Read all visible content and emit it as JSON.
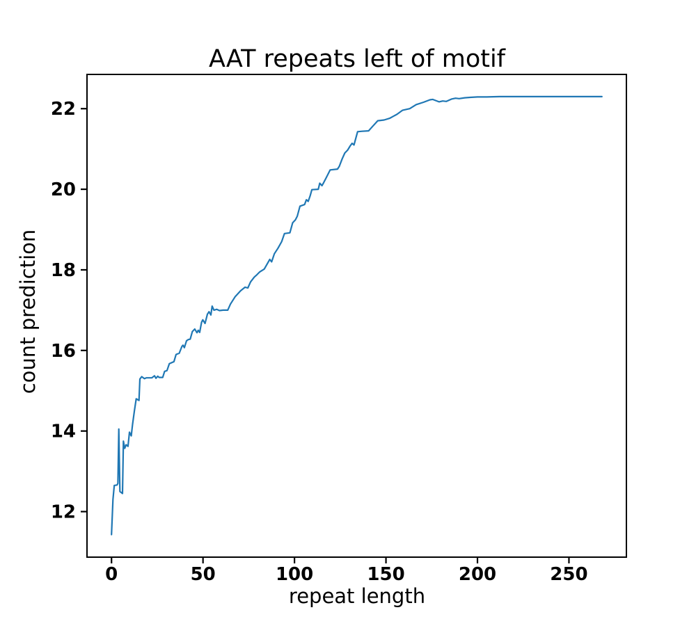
{
  "figure": {
    "background": "#ffffff"
  },
  "chart_data": {
    "type": "line",
    "title": "AAT repeats left of motif",
    "xlabel": "repeat length",
    "ylabel": "count prediction",
    "x_ticks": [
      0,
      50,
      100,
      150,
      200,
      250
    ],
    "y_ticks": [
      12,
      14,
      16,
      18,
      20,
      22
    ],
    "xlim": [
      -13.4,
      281.4
    ],
    "ylim": [
      10.87,
      22.85
    ],
    "grid": false,
    "legend": "none",
    "line_color": "#1f77b4",
    "text_color": "#000000",
    "spine_color": "#000000",
    "series": [
      {
        "name": "count prediction",
        "points": [
          [
            0,
            11.43
          ],
          [
            0.8,
            12.3
          ],
          [
            1.5,
            12.65
          ],
          [
            3,
            12.66
          ],
          [
            3.5,
            12.7
          ],
          [
            4,
            14.05
          ],
          [
            4.6,
            12.5
          ],
          [
            6,
            12.45
          ],
          [
            6.5,
            13.75
          ],
          [
            7.2,
            13.57
          ],
          [
            8,
            13.66
          ],
          [
            9,
            13.62
          ],
          [
            9.8,
            13.97
          ],
          [
            10.8,
            13.88
          ],
          [
            11.5,
            14.17
          ],
          [
            12.5,
            14.5
          ],
          [
            13.5,
            14.8
          ],
          [
            15,
            14.76
          ],
          [
            15.5,
            15.29
          ],
          [
            16.5,
            15.35
          ],
          [
            18,
            15.3
          ],
          [
            19,
            15.32
          ],
          [
            22,
            15.32
          ],
          [
            23.5,
            15.37
          ],
          [
            24.3,
            15.31
          ],
          [
            25.3,
            15.36
          ],
          [
            26,
            15.33
          ],
          [
            28,
            15.33
          ],
          [
            29,
            15.48
          ],
          [
            30.3,
            15.5
          ],
          [
            31.6,
            15.67
          ],
          [
            33,
            15.7
          ],
          [
            34.1,
            15.72
          ],
          [
            35.3,
            15.9
          ],
          [
            37,
            15.93
          ],
          [
            38.5,
            16.1
          ],
          [
            39.1,
            16.13
          ],
          [
            39.8,
            16.07
          ],
          [
            41,
            16.24
          ],
          [
            42,
            16.27
          ],
          [
            43,
            16.28
          ],
          [
            44.2,
            16.47
          ],
          [
            45.5,
            16.53
          ],
          [
            46.7,
            16.44
          ],
          [
            47.4,
            16.5
          ],
          [
            48.2,
            16.45
          ],
          [
            49.2,
            16.7
          ],
          [
            49.9,
            16.76
          ],
          [
            51.1,
            16.67
          ],
          [
            52.4,
            16.9
          ],
          [
            53.3,
            16.96
          ],
          [
            54.3,
            16.88
          ],
          [
            55,
            17.1
          ],
          [
            56,
            17.0
          ],
          [
            57.5,
            17.02
          ],
          [
            59,
            16.99
          ],
          [
            61,
            17.0
          ],
          [
            63.5,
            17.0
          ],
          [
            65,
            17.15
          ],
          [
            67.5,
            17.33
          ],
          [
            70.5,
            17.48
          ],
          [
            73,
            17.57
          ],
          [
            74.5,
            17.55
          ],
          [
            76,
            17.7
          ],
          [
            78,
            17.82
          ],
          [
            79.5,
            17.88
          ],
          [
            81,
            17.95
          ],
          [
            83.5,
            18.02
          ],
          [
            85,
            18.14
          ],
          [
            86.5,
            18.26
          ],
          [
            87.5,
            18.2
          ],
          [
            89,
            18.4
          ],
          [
            91,
            18.54
          ],
          [
            93,
            18.7
          ],
          [
            94.5,
            18.9
          ],
          [
            97.5,
            18.92
          ],
          [
            99,
            19.17
          ],
          [
            100.5,
            19.24
          ],
          [
            101.5,
            19.33
          ],
          [
            103,
            19.58
          ],
          [
            105.5,
            19.62
          ],
          [
            106.5,
            19.74
          ],
          [
            107.5,
            19.7
          ],
          [
            108.5,
            19.83
          ],
          [
            109.5,
            19.99
          ],
          [
            113,
            20.0
          ],
          [
            113.8,
            20.15
          ],
          [
            115,
            20.09
          ],
          [
            116,
            20.17
          ],
          [
            117.5,
            20.3
          ],
          [
            119.5,
            20.48
          ],
          [
            123.5,
            20.5
          ],
          [
            124.5,
            20.57
          ],
          [
            126,
            20.75
          ],
          [
            127.5,
            20.9
          ],
          [
            129,
            20.97
          ],
          [
            130.5,
            21.08
          ],
          [
            131.5,
            21.14
          ],
          [
            132.5,
            21.1
          ],
          [
            134.5,
            21.43
          ],
          [
            137,
            21.44
          ],
          [
            140.5,
            21.45
          ],
          [
            142.5,
            21.55
          ],
          [
            145.5,
            21.7
          ],
          [
            149,
            21.72
          ],
          [
            152,
            21.76
          ],
          [
            154,
            21.81
          ],
          [
            156,
            21.86
          ],
          [
            159,
            21.96
          ],
          [
            163,
            22.0
          ],
          [
            166.5,
            22.1
          ],
          [
            170.5,
            22.16
          ],
          [
            174,
            22.22
          ],
          [
            175.5,
            22.23
          ],
          [
            179,
            22.17
          ],
          [
            181,
            22.19
          ],
          [
            183,
            22.18
          ],
          [
            186,
            22.24
          ],
          [
            188,
            22.26
          ],
          [
            190,
            22.25
          ],
          [
            193,
            22.27
          ],
          [
            196,
            22.28
          ],
          [
            200,
            22.29
          ],
          [
            205,
            22.29
          ],
          [
            212,
            22.3
          ],
          [
            230,
            22.3
          ],
          [
            250,
            22.3
          ],
          [
            268,
            22.3
          ]
        ]
      }
    ]
  }
}
